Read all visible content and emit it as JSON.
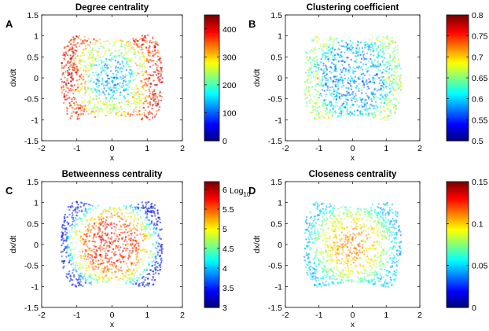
{
  "figure": {
    "panels": [
      {
        "letter": "A",
        "title": "Degree centrality",
        "colorbar_suffix": ""
      },
      {
        "letter": "B",
        "title": "Clustering coefficient",
        "colorbar_suffix": ""
      },
      {
        "letter": "C",
        "title": "Betweenness centrality",
        "colorbar_suffix": "Log10"
      },
      {
        "letter": "D",
        "title": "Closeness centrality",
        "colorbar_suffix": ""
      }
    ]
  },
  "chart_data": [
    {
      "type": "scatter",
      "title": "Degree centrality",
      "xlabel": "x",
      "ylabel": "dx/dt",
      "xlim": [
        -2,
        2
      ],
      "ylim": [
        -1.5,
        1.5
      ],
      "xticks": [
        "-2",
        "-1",
        "0",
        "1",
        "2"
      ],
      "yticks": [
        "-1.5",
        "-1",
        "-0.5",
        "0",
        "0.5",
        "1",
        "1.5"
      ],
      "colorbar": {
        "range": [
          0,
          450
        ],
        "ticks": [
          "0",
          "100",
          "200",
          "300",
          "400"
        ],
        "tick_values": [
          0,
          100,
          200,
          300,
          400
        ],
        "colormap": "jet"
      },
      "description_pattern": "high on outer ring and lobes, low at center"
    },
    {
      "type": "scatter",
      "title": "Clustering coefficient",
      "xlabel": "x",
      "ylabel": "dx/dt",
      "xlim": [
        -2,
        2
      ],
      "ylim": [
        -1.5,
        1.5
      ],
      "xticks": [
        "-2",
        "-1",
        "0",
        "1",
        "2"
      ],
      "yticks": [
        "-1.5",
        "-1",
        "-0.5",
        "0",
        "0.5",
        "1",
        "1.5"
      ],
      "colorbar": {
        "range": [
          0.5,
          0.8
        ],
        "ticks": [
          "0.5",
          "0.55",
          "0.6",
          "0.65",
          "0.7",
          "0.75",
          "0.8"
        ],
        "tick_values": [
          0.5,
          0.55,
          0.6,
          0.65,
          0.7,
          0.75,
          0.8
        ],
        "colormap": "jet"
      },
      "description_pattern": "mostly low (cyan) with higher values at outer edge"
    },
    {
      "type": "scatter",
      "title": "Betweenness centrality",
      "xlabel": "x",
      "ylabel": "dx/dt",
      "xlim": [
        -2,
        2
      ],
      "ylim": [
        -1.5,
        1.5
      ],
      "xticks": [
        "-2",
        "-1",
        "0",
        "1",
        "2"
      ],
      "yticks": [
        "-1.5",
        "-1",
        "-0.5",
        "0",
        "0.5",
        "1",
        "1.5"
      ],
      "colorbar": {
        "range": [
          3,
          6.2
        ],
        "ticks": [
          "3",
          "3.5",
          "4",
          "4.5",
          "5",
          "5.5",
          "6"
        ],
        "tick_values": [
          3,
          3.5,
          4,
          4.5,
          5,
          5.5,
          6
        ],
        "colormap": "jet",
        "label": "Log10"
      },
      "description_pattern": "high in interior, decreasing toward outer edge"
    },
    {
      "type": "scatter",
      "title": "Closeness centrality",
      "xlabel": "x",
      "ylabel": "dx/dt",
      "xlim": [
        -2,
        2
      ],
      "ylim": [
        -1.5,
        1.5
      ],
      "xticks": [
        "-2",
        "-1",
        "0",
        "1",
        "2"
      ],
      "yticks": [
        "-1.5",
        "-1",
        "-0.5",
        "0",
        "0.5",
        "1",
        "1.5"
      ],
      "colorbar": {
        "range": [
          0,
          0.15
        ],
        "ticks": [
          "0",
          "0.05",
          "0.1",
          "0.15"
        ],
        "tick_values": [
          0,
          0.05,
          0.1,
          0.15
        ],
        "colormap": "jet"
      },
      "description_pattern": "high at center, low toward outer edge"
    }
  ]
}
